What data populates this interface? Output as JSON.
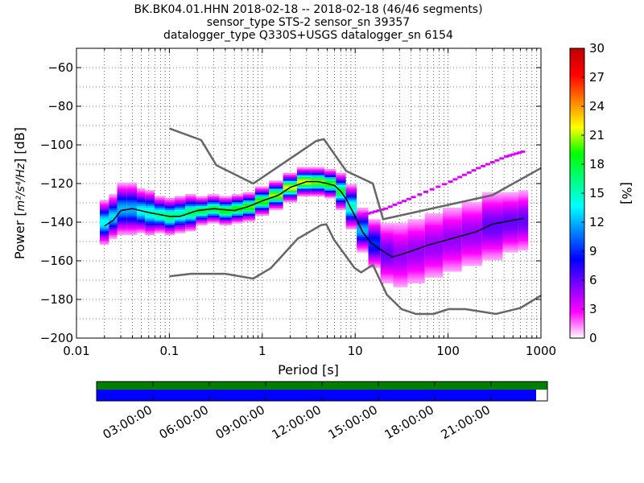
{
  "chart_data": {
    "type": "heatmap",
    "title_lines": [
      "BK.BK04.01.HHN   2018-02-18 -- 2018-02-18  (46/46 segments)",
      "sensor_type STS-2 sensor_sn 39357",
      "datalogger_type Q330S+USGS datalogger_sn 6154"
    ],
    "xlabel": "Period [s]",
    "ylabel_prefix": "Power [",
    "ylabel_units": "m²/s⁴/Hz",
    "ylabel_suffix": "] [dB]",
    "xscale": "log",
    "xlim": [
      0.01,
      1000
    ],
    "ylim": [
      -200,
      -50
    ],
    "x_tick_labels": [
      "0.01",
      "0.1",
      "1",
      "10",
      "100",
      "1000"
    ],
    "y_ticks": [
      -60,
      -80,
      -100,
      -120,
      -140,
      -160,
      -180,
      -200
    ],
    "colorbar": {
      "label": "[%]",
      "ticks": [
        0,
        3,
        6,
        9,
        12,
        15,
        18,
        21,
        24,
        27,
        30
      ],
      "range": [
        0,
        30
      ],
      "colors": [
        "#ffffff",
        "#ff00ff",
        "#8000ff",
        "#0000ff",
        "#0080ff",
        "#00ffff",
        "#00ff80",
        "#00ff00",
        "#ffff00",
        "#ff8000",
        "#ff0000",
        "#c00000"
      ]
    },
    "noise_model_high": [
      [
        0.1,
        -91.5
      ],
      [
        0.22,
        -97.5
      ],
      [
        0.32,
        -110.5
      ],
      [
        0.8,
        -120
      ],
      [
        3.8,
        -98
      ],
      [
        4.6,
        -97
      ],
      [
        8,
        -113.5
      ],
      [
        15.5,
        -120
      ],
      [
        20,
        -138.5
      ],
      [
        300,
        -126
      ],
      [
        1000,
        -112
      ]
    ],
    "noise_model_low": [
      [
        0.1,
        -168
      ],
      [
        0.17,
        -166.7
      ],
      [
        0.4,
        -166.7
      ],
      [
        0.8,
        -169.2
      ],
      [
        1.24,
        -163.7
      ],
      [
        2.4,
        -148.6
      ],
      [
        4.3,
        -141.5
      ],
      [
        4.9,
        -141.1
      ],
      [
        5.9,
        -149
      ],
      [
        9.8,
        -163.6
      ],
      [
        11.6,
        -166
      ],
      [
        15.5,
        -162.1
      ],
      [
        21.9,
        -177.5
      ],
      [
        31.6,
        -185
      ],
      [
        45,
        -187.5
      ],
      [
        70,
        -187.5
      ],
      [
        101,
        -185
      ],
      [
        154,
        -185
      ],
      [
        328,
        -187.5
      ],
      [
        600,
        -184.4
      ],
      [
        1000,
        -178
      ]
    ],
    "mean_curve": [
      [
        0.02,
        -142
      ],
      [
        0.025,
        -139
      ],
      [
        0.03,
        -134
      ],
      [
        0.04,
        -133
      ],
      [
        0.06,
        -135
      ],
      [
        0.1,
        -137
      ],
      [
        0.13,
        -137
      ],
      [
        0.2,
        -134
      ],
      [
        0.3,
        -133
      ],
      [
        0.5,
        -134
      ],
      [
        0.7,
        -132
      ],
      [
        1,
        -129
      ],
      [
        1.5,
        -126
      ],
      [
        2,
        -122
      ],
      [
        3,
        -119
      ],
      [
        4,
        -119
      ],
      [
        5,
        -120
      ],
      [
        6,
        -121
      ],
      [
        7,
        -124
      ],
      [
        8,
        -128
      ],
      [
        10,
        -137
      ],
      [
        12,
        -145
      ],
      [
        15,
        -151
      ],
      [
        20,
        -155
      ],
      [
        25,
        -158
      ],
      [
        30,
        -157
      ],
      [
        40,
        -155
      ],
      [
        60,
        -152
      ],
      [
        100,
        -149
      ],
      [
        200,
        -145
      ],
      [
        300,
        -141
      ],
      [
        500,
        -139
      ],
      [
        650,
        -138
      ]
    ],
    "ppsd_columns": [
      {
        "x": 0.02,
        "center": -140,
        "spread": 5,
        "peak": 14
      },
      {
        "x": 0.025,
        "center": -137,
        "spread": 5,
        "peak": 13
      },
      {
        "x": 0.03,
        "center": -133,
        "spread": 6,
        "peak": 12
      },
      {
        "x": 0.04,
        "center": -133,
        "spread": 6,
        "peak": 12
      },
      {
        "x": 0.05,
        "center": -134,
        "spread": 5,
        "peak": 14
      },
      {
        "x": 0.06,
        "center": -135,
        "spread": 5,
        "peak": 15
      },
      {
        "x": 0.08,
        "center": -136,
        "spread": 4,
        "peak": 16
      },
      {
        "x": 0.1,
        "center": -137,
        "spread": 4,
        "peak": 17
      },
      {
        "x": 0.13,
        "center": -136,
        "spread": 4,
        "peak": 16
      },
      {
        "x": 0.17,
        "center": -135,
        "spread": 4,
        "peak": 17
      },
      {
        "x": 0.22,
        "center": -134,
        "spread": 3,
        "peak": 18
      },
      {
        "x": 0.3,
        "center": -133,
        "spread": 3,
        "peak": 18
      },
      {
        "x": 0.4,
        "center": -134,
        "spread": 3,
        "peak": 19
      },
      {
        "x": 0.55,
        "center": -133,
        "spread": 3,
        "peak": 19
      },
      {
        "x": 0.7,
        "center": -132,
        "spread": 3,
        "peak": 20
      },
      {
        "x": 1,
        "center": -129,
        "spread": 3,
        "peak": 20
      },
      {
        "x": 1.4,
        "center": -126,
        "spread": 3,
        "peak": 21
      },
      {
        "x": 2,
        "center": -122,
        "spread": 3,
        "peak": 22
      },
      {
        "x": 2.8,
        "center": -119,
        "spread": 3,
        "peak": 22
      },
      {
        "x": 4,
        "center": -119,
        "spread": 3,
        "peak": 21
      },
      {
        "x": 5.5,
        "center": -120,
        "spread": 3,
        "peak": 20
      },
      {
        "x": 7,
        "center": -124,
        "spread": 4,
        "peak": 18
      },
      {
        "x": 9,
        "center": -132,
        "spread": 5,
        "peak": 15
      },
      {
        "x": 12,
        "center": -144,
        "spread": 5,
        "peak": 12
      },
      {
        "x": 16,
        "center": -151,
        "spread": 6,
        "peak": 9
      },
      {
        "x": 22,
        "center": -156,
        "spread": 8,
        "peak": 6
      },
      {
        "x": 30,
        "center": -157,
        "spread": 9,
        "peak": 5
      },
      {
        "x": 45,
        "center": -155,
        "spread": 9,
        "peak": 5
      },
      {
        "x": 70,
        "center": -152,
        "spread": 9,
        "peak": 5
      },
      {
        "x": 110,
        "center": -149,
        "spread": 9,
        "peak": 5
      },
      {
        "x": 180,
        "center": -146,
        "spread": 9,
        "peak": 5
      },
      {
        "x": 300,
        "center": -142,
        "spread": 9,
        "peak": 6
      },
      {
        "x": 500,
        "center": -140,
        "spread": 8,
        "peak": 6
      },
      {
        "x": 650,
        "center": -139,
        "spread": 8,
        "peak": 6
      }
    ],
    "outlier_line": [
      [
        12,
        -136
      ],
      [
        20,
        -133
      ],
      [
        40,
        -127
      ],
      [
        100,
        -119
      ],
      [
        200,
        -112
      ],
      [
        400,
        -106
      ],
      [
        650,
        -103
      ]
    ]
  },
  "timeline": {
    "tick_labels": [
      "03:00:00",
      "06:00:00",
      "09:00:00",
      "12:00:00",
      "15:00:00",
      "18:00:00",
      "21:00:00"
    ],
    "coverage_top_fraction": 1.0,
    "coverage_bottom_fraction": 0.975,
    "top_color": "#007f00",
    "bottom_color": "#0000ff"
  }
}
